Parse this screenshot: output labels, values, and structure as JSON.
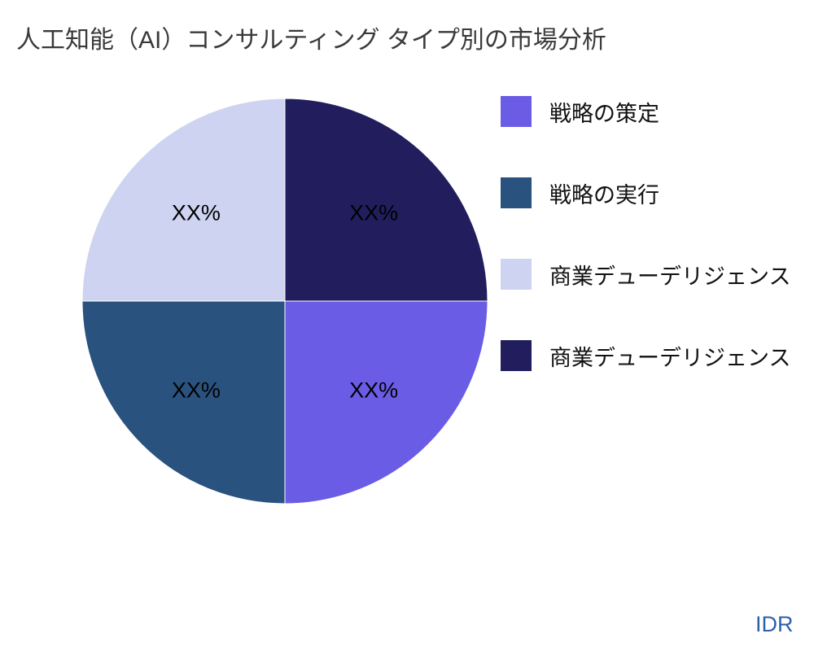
{
  "chart_data": {
    "type": "pie",
    "title": "人工知能（AI）コンサルティング タイプ別の市場分析",
    "start_angle_deg": 0,
    "direction": "clockwise",
    "legend_position": "right",
    "slices": [
      {
        "label": "戦略の策定",
        "value": 25,
        "display_label": "XX%",
        "color": "#6b5ce5"
      },
      {
        "label": "戦略の実行",
        "value": 25,
        "display_label": "XX%",
        "color": "#2a527f"
      },
      {
        "label": "商業デューデリジェンス",
        "value": 25,
        "display_label": "XX%",
        "color": "#cdd3f0"
      },
      {
        "label": "商業デューデリジェンス",
        "value": 25,
        "display_label": "XX%",
        "color": "#221e5e"
      }
    ]
  },
  "watermark": {
    "text": "IDR",
    "color": "#2e5fa8"
  }
}
